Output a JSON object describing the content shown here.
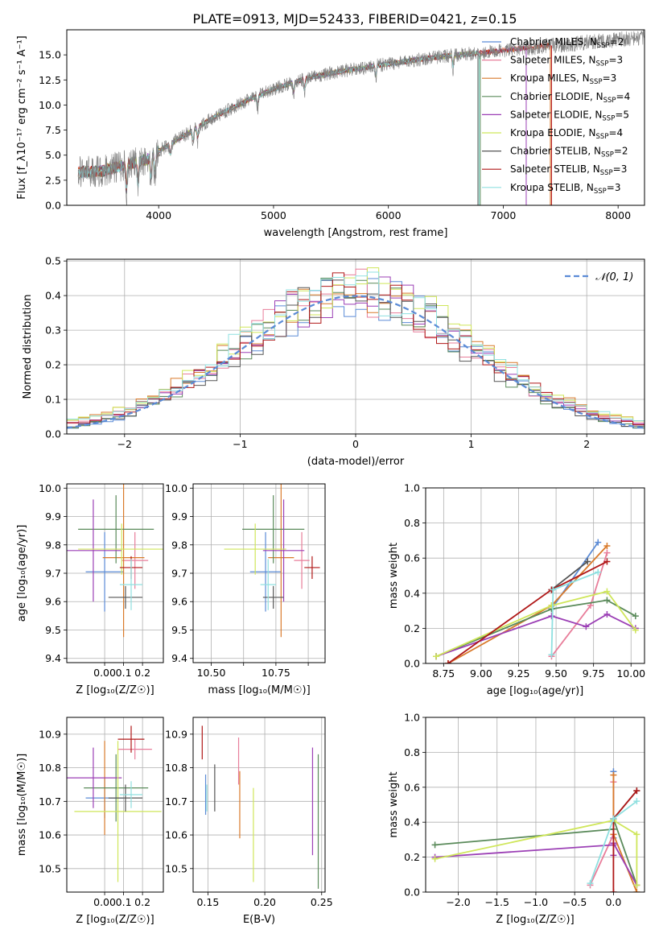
{
  "figure_title": "PLATE=0913, MJD=52433, FIBERID=0421, z=0.15",
  "colors": {
    "chabrier_miles": "#5b8bd6",
    "salpeter_miles": "#e87d9a",
    "kroupa_miles": "#d97a2b",
    "chabrier_elodie": "#5a8a5a",
    "salpeter_elodie": "#9b3fb5",
    "kroupa_elodie": "#cfe65a",
    "chabrier_stelib": "#555555",
    "salpeter_stelib": "#b01818",
    "kroupa_stelib": "#8fe0e0",
    "data": "#808080"
  },
  "chart_data": [
    {
      "id": "spectrum",
      "type": "line",
      "xlabel": "wavelength [Angstrom, rest frame]",
      "ylabel": "Flux [f_λ10⁻¹⁷ erg cm⁻² s⁻¹ A⁻¹]",
      "xlim": [
        3200,
        8230
      ],
      "ylim": [
        0,
        17.5
      ],
      "xticks": [
        4000,
        5000,
        6000,
        7000,
        8000
      ],
      "yticks": [
        0.0,
        2.5,
        5.0,
        7.5,
        10.0,
        12.5,
        15.0
      ],
      "ytick_labels": [
        "0.0",
        "2.5",
        "5.0",
        "7.5",
        "10.0",
        "12.5",
        "15.0"
      ],
      "legend": "top-right",
      "legend_entries": [
        {
          "label": "Chabrier MILES, N",
          "sub": "SSP",
          "tail": "=2",
          "color": "#5b8bd6"
        },
        {
          "label": "Salpeter MILES, N",
          "sub": "SSP",
          "tail": "=3",
          "color": "#e87d9a"
        },
        {
          "label": "Kroupa MILES, N",
          "sub": "SSP",
          "tail": "=3",
          "color": "#d97a2b"
        },
        {
          "label": "Chabrier ELODIE, N",
          "sub": "SSP",
          "tail": "=4",
          "color": "#5a8a5a"
        },
        {
          "label": "Salpeter ELODIE, N",
          "sub": "SSP",
          "tail": "=5",
          "color": "#9b3fb5"
        },
        {
          "label": "Kroupa ELODIE, N",
          "sub": "SSP",
          "tail": "=4",
          "color": "#cfe65a"
        },
        {
          "label": "Chabrier STELIB, N",
          "sub": "SSP",
          "tail": "=2",
          "color": "#555555"
        },
        {
          "label": "Salpeter STELIB, N",
          "sub": "SSP",
          "tail": "=3",
          "color": "#b01818"
        },
        {
          "label": "Kroupa STELIB, N",
          "sub": "SSP",
          "tail": "=3",
          "color": "#8fe0e0"
        }
      ],
      "continuum": {
        "x": [
          3300,
          3500,
          3700,
          3900,
          4000,
          4200,
          4500,
          4800,
          5000,
          5300,
          5600,
          6000,
          6300,
          6600,
          6900,
          7200,
          7500,
          7800,
          8000,
          8230
        ],
        "y": [
          3.3,
          3.4,
          4.0,
          4.6,
          5.4,
          6.8,
          8.9,
          10.6,
          11.6,
          12.7,
          13.4,
          14.1,
          14.6,
          15.0,
          15.3,
          15.7,
          16.0,
          16.3,
          16.5,
          16.7
        ]
      },
      "model_x_ranges": [
        [
          3300,
          6780
        ],
        [
          3300,
          7420
        ],
        [
          3300,
          7410
        ],
        [
          3300,
          6800
        ],
        [
          3300,
          7200
        ],
        [
          3300,
          6790
        ],
        [
          3300,
          6780
        ],
        [
          3300,
          7420
        ],
        [
          3300,
          6790
        ]
      ]
    },
    {
      "id": "residual_hist",
      "type": "bar",
      "xlabel": "(data-model)/error",
      "ylabel": "Normed distribution",
      "xlim": [
        -2.5,
        2.5
      ],
      "ylim": [
        0,
        0.505
      ],
      "xticks": [
        -2,
        -1,
        0,
        1,
        2
      ],
      "xtick_labels": [
        "−2",
        "−1",
        "0",
        "1",
        "2"
      ],
      "yticks": [
        0.0,
        0.1,
        0.2,
        0.3,
        0.4,
        0.5
      ],
      "ytick_labels": [
        "0.0",
        "0.1",
        "0.2",
        "0.3",
        "0.4",
        "0.5"
      ],
      "legend": "top-right",
      "gaussian_label": "𝒩(0, 1)",
      "bin_width": 0.1,
      "bin_start": -2.5
    },
    {
      "id": "age_vs_Z",
      "type": "scatter",
      "xlabel": "Z [log₁₀(Z/Z☉)]",
      "ylabel": "age  [log₁₀(age/yr)]",
      "xlim": [
        -0.2,
        0.31
      ],
      "ylim": [
        9.385,
        10.015
      ],
      "xticks": [
        0.0,
        0.1,
        0.2
      ],
      "xtick_labels": [
        "0.00",
        "0.1",
        "0.2"
      ],
      "yticks": [
        9.4,
        9.5,
        9.6,
        9.7,
        9.8,
        9.9,
        10.0
      ],
      "ytick_labels": [
        "9.4",
        "9.5",
        "9.6",
        "9.7",
        "9.8",
        "9.9",
        "10.0"
      ],
      "points": [
        {
          "model": "chabrier_miles",
          "x": 0.0,
          "y": 9.705,
          "xerr": 0.1,
          "yerr": 0.14
        },
        {
          "model": "salpeter_miles",
          "x": 0.16,
          "y": 9.745,
          "xerr": 0.07,
          "yerr": 0.1
        },
        {
          "model": "kroupa_miles",
          "x": 0.1,
          "y": 9.755,
          "xerr": 0.11,
          "yerr": 0.28
        },
        {
          "model": "chabrier_elodie",
          "x": 0.06,
          "y": 9.855,
          "xerr": 0.2,
          "yerr": 0.12
        },
        {
          "model": "salpeter_elodie",
          "x": -0.06,
          "y": 9.78,
          "xerr": 0.15,
          "yerr": 0.18
        },
        {
          "model": "kroupa_elodie",
          "x": 0.09,
          "y": 9.785,
          "xerr": 0.23,
          "yerr": 0.09
        },
        {
          "model": "chabrier_stelib",
          "x": 0.11,
          "y": 9.615,
          "xerr": 0.09,
          "yerr": 0.04
        },
        {
          "model": "salpeter_stelib",
          "x": 0.14,
          "y": 9.72,
          "xerr": 0.06,
          "yerr": 0.04
        },
        {
          "model": "kroupa_stelib",
          "x": 0.14,
          "y": 9.66,
          "xerr": 0.06,
          "yerr": 0.09
        }
      ]
    },
    {
      "id": "age_vs_mass",
      "type": "scatter",
      "xlabel": "mass [log₁₀(M/M☉)]",
      "ylabel": "",
      "xlim": [
        10.43,
        10.94
      ],
      "ylim": [
        9.385,
        10.015
      ],
      "xticks": [
        10.5,
        10.625,
        10.75,
        10.875
      ],
      "xtick_labels": [
        "10.50",
        "",
        "10.75",
        ""
      ],
      "yticks": [
        9.4,
        9.5,
        9.6,
        9.7,
        9.8,
        9.9,
        10.0
      ],
      "ytick_labels": [
        "9.4",
        "9.5",
        "9.6",
        "9.7",
        "9.8",
        "9.9",
        "10.0"
      ],
      "points": [
        {
          "model": "chabrier_miles",
          "x": 10.71,
          "y": 9.705,
          "xerr": 0.06,
          "yerr": 0.14
        },
        {
          "model": "salpeter_miles",
          "x": 10.85,
          "y": 9.745,
          "xerr": 0.03,
          "yerr": 0.1
        },
        {
          "model": "kroupa_miles",
          "x": 10.77,
          "y": 9.755,
          "xerr": 0.05,
          "yerr": 0.28
        },
        {
          "model": "chabrier_elodie",
          "x": 10.74,
          "y": 9.855,
          "xerr": 0.12,
          "yerr": 0.12
        },
        {
          "model": "salpeter_elodie",
          "x": 10.78,
          "y": 9.78,
          "xerr": 0.08,
          "yerr": 0.18
        },
        {
          "model": "kroupa_elodie",
          "x": 10.67,
          "y": 9.785,
          "xerr": 0.12,
          "yerr": 0.09
        },
        {
          "model": "chabrier_stelib",
          "x": 10.74,
          "y": 9.615,
          "xerr": 0.04,
          "yerr": 0.04
        },
        {
          "model": "salpeter_stelib",
          "x": 10.89,
          "y": 9.72,
          "xerr": 0.03,
          "yerr": 0.04
        },
        {
          "model": "kroupa_stelib",
          "x": 10.72,
          "y": 9.66,
          "xerr": 0.03,
          "yerr": 0.09
        }
      ]
    },
    {
      "id": "weight_vs_age",
      "type": "line",
      "xlabel": "age  [log₁₀(age/yr)]",
      "ylabel": "mass weight",
      "xlim": [
        8.63,
        10.09
      ],
      "ylim": [
        0,
        1.0
      ],
      "xticks": [
        8.75,
        9.0,
        9.25,
        9.5,
        9.75,
        10.0
      ],
      "xtick_labels": [
        "8.75",
        "9.00",
        "9.25",
        "9.50",
        "9.75",
        "10.00"
      ],
      "yticks": [
        0.0,
        0.2,
        0.4,
        0.6,
        0.8,
        1.0
      ],
      "ytick_labels": [
        "0.0",
        "0.2",
        "0.4",
        "0.6",
        "0.8",
        "1.0"
      ],
      "series": [
        {
          "model": "chabrier_miles",
          "x": [
            9.47,
            9.78
          ],
          "y": [
            0.31,
            0.69
          ]
        },
        {
          "model": "salpeter_miles",
          "x": [
            9.47,
            9.73,
            9.84
          ],
          "y": [
            0.04,
            0.33,
            0.63
          ]
        },
        {
          "model": "kroupa_miles",
          "x": [
            8.78,
            9.47,
            9.84
          ],
          "y": [
            0.0,
            0.33,
            0.67
          ]
        },
        {
          "model": "chabrier_elodie",
          "x": [
            8.7,
            9.47,
            9.84,
            10.03
          ],
          "y": [
            0.04,
            0.31,
            0.36,
            0.27
          ]
        },
        {
          "model": "salpeter_elodie",
          "x": [
            8.7,
            9.47,
            9.7,
            9.84,
            10.03
          ],
          "y": [
            0.04,
            0.27,
            0.21,
            0.28,
            0.2
          ]
        },
        {
          "model": "kroupa_elodie",
          "x": [
            8.7,
            9.47,
            9.84,
            10.03
          ],
          "y": [
            0.04,
            0.33,
            0.41,
            0.19
          ]
        },
        {
          "model": "chabrier_stelib",
          "x": [
            9.47,
            9.71
          ],
          "y": [
            0.42,
            0.58
          ]
        },
        {
          "model": "salpeter_stelib",
          "x": [
            8.78,
            9.47,
            9.84
          ],
          "y": [
            0.0,
            0.42,
            0.58
          ]
        },
        {
          "model": "kroupa_stelib",
          "x": [
            9.47,
            9.48,
            9.78
          ],
          "y": [
            0.05,
            0.42,
            0.52
          ]
        }
      ]
    },
    {
      "id": "mass_vs_Z",
      "type": "scatter",
      "xlabel": "Z [log₁₀(Z/Z☉)]",
      "ylabel": "mass [log₁₀(M/M☉)]",
      "xlim": [
        -0.2,
        0.31
      ],
      "ylim": [
        10.43,
        10.95
      ],
      "xticks": [
        0.0,
        0.1,
        0.2
      ],
      "xtick_labels": [
        "0.00",
        "0.1",
        "0.2"
      ],
      "yticks": [
        10.5,
        10.6,
        10.7,
        10.8,
        10.9
      ],
      "ytick_labels": [
        "10.5",
        "10.6",
        "10.7",
        "10.8",
        "10.9"
      ],
      "points": [
        {
          "model": "chabrier_miles",
          "x": 0.0,
          "y": 10.71,
          "xerr": 0.1,
          "yerr": 0.06
        },
        {
          "model": "salpeter_miles",
          "x": 0.16,
          "y": 10.855,
          "xerr": 0.09,
          "yerr": 0.03
        },
        {
          "model": "kroupa_miles",
          "x": 0.0,
          "y": 10.74,
          "xerr": 0.0,
          "yerr": 0.14
        },
        {
          "model": "chabrier_elodie",
          "x": 0.06,
          "y": 10.74,
          "xerr": 0.17,
          "yerr": 0.1
        },
        {
          "model": "salpeter_elodie",
          "x": -0.06,
          "y": 10.77,
          "xerr": 0.15,
          "yerr": 0.09
        },
        {
          "model": "kroupa_elodie",
          "x": 0.07,
          "y": 10.67,
          "xerr": 0.23,
          "yerr": 0.21
        },
        {
          "model": "chabrier_stelib",
          "x": 0.11,
          "y": 10.71,
          "xerr": 0.09,
          "yerr": 0.04
        },
        {
          "model": "salpeter_stelib",
          "x": 0.14,
          "y": 10.885,
          "xerr": 0.07,
          "yerr": 0.04
        },
        {
          "model": "kroupa_stelib",
          "x": 0.14,
          "y": 10.72,
          "xerr": 0.06,
          "yerr": 0.04
        }
      ]
    },
    {
      "id": "mass_vs_ebv",
      "type": "scatter",
      "xlabel": "E(B-V)",
      "ylabel": "",
      "xlim": [
        0.137,
        0.253
      ],
      "ylim": [
        10.43,
        10.95
      ],
      "xticks": [
        0.15,
        0.2,
        0.25
      ],
      "xtick_labels": [
        "0.15",
        "0.20",
        "0.25"
      ],
      "yticks": [
        10.5,
        10.6,
        10.7,
        10.8,
        10.9
      ],
      "ytick_labels": [
        "10.5",
        "10.6",
        "10.7",
        "10.8",
        "10.9"
      ],
      "points": [
        {
          "model": "chabrier_miles",
          "x": 0.148,
          "y": 10.72,
          "xerr": 0.0,
          "yerr": 0.06
        },
        {
          "model": "salpeter_miles",
          "x": 0.177,
          "y": 10.82,
          "xerr": 0.0,
          "yerr": 0.07
        },
        {
          "model": "kroupa_miles",
          "x": 0.178,
          "y": 10.69,
          "xerr": 0.0,
          "yerr": 0.1
        },
        {
          "model": "chabrier_elodie",
          "x": 0.247,
          "y": 10.64,
          "xerr": 0.0,
          "yerr": 0.2
        },
        {
          "model": "salpeter_elodie",
          "x": 0.242,
          "y": 10.7,
          "xerr": 0.0,
          "yerr": 0.16
        },
        {
          "model": "kroupa_elodie",
          "x": 0.19,
          "y": 10.6,
          "xerr": 0.0,
          "yerr": 0.14
        },
        {
          "model": "chabrier_stelib",
          "x": 0.156,
          "y": 10.74,
          "xerr": 0.0,
          "yerr": 0.07
        },
        {
          "model": "salpeter_stelib",
          "x": 0.145,
          "y": 10.875,
          "xerr": 0.0,
          "yerr": 0.05
        },
        {
          "model": "kroupa_stelib",
          "x": 0.149,
          "y": 10.71,
          "xerr": 0.0,
          "yerr": 0.04
        }
      ]
    },
    {
      "id": "weight_vs_Z",
      "type": "line",
      "xlabel": "Z [log₁₀(Z/Z☉)]",
      "ylabel": "mass weight",
      "xlim": [
        -2.42,
        0.4
      ],
      "ylim": [
        0,
        1.0
      ],
      "xticks": [
        -2.0,
        -1.5,
        -1.0,
        -0.5,
        0.0
      ],
      "xtick_labels": [
        "−2.0",
        "−1.5",
        "−1.0",
        "−0.5",
        "0.0"
      ],
      "yticks": [
        0.0,
        0.2,
        0.4,
        0.6,
        0.8,
        1.0
      ],
      "ytick_labels": [
        "0.0",
        "0.2",
        "0.4",
        "0.6",
        "0.8",
        "1.0"
      ],
      "series": [
        {
          "model": "chabrier_miles",
          "x": [
            0.0,
            0.0
          ],
          "y": [
            0.31,
            0.69
          ]
        },
        {
          "model": "salpeter_miles",
          "x": [
            -0.3,
            0.0,
            0.0
          ],
          "y": [
            0.04,
            0.33,
            0.63
          ]
        },
        {
          "model": "kroupa_miles",
          "x": [
            0.0,
            0.0,
            0.3
          ],
          "y": [
            0.67,
            0.33,
            0.0
          ]
        },
        {
          "model": "chabrier_elodie",
          "x": [
            -2.3,
            0.0,
            0.0,
            0.3
          ],
          "y": [
            0.27,
            0.36,
            0.42,
            0.04
          ]
        },
        {
          "model": "salpeter_elodie",
          "x": [
            -2.3,
            0.0,
            0.0,
            0.0,
            0.3
          ],
          "y": [
            0.2,
            0.27,
            0.21,
            0.28,
            0.04
          ]
        },
        {
          "model": "kroupa_elodie",
          "x": [
            -2.3,
            0.0,
            0.3,
            0.3
          ],
          "y": [
            0.19,
            0.41,
            0.33,
            0.04
          ]
        },
        {
          "model": "chabrier_stelib",
          "x": [
            0.0,
            0.3
          ],
          "y": [
            0.42,
            0.58
          ]
        },
        {
          "model": "salpeter_stelib",
          "x": [
            0.0,
            0.0,
            0.3
          ],
          "y": [
            0.0,
            0.42,
            0.58
          ]
        },
        {
          "model": "kroupa_stelib",
          "x": [
            -0.3,
            0.0,
            0.3
          ],
          "y": [
            0.05,
            0.42,
            0.52
          ]
        }
      ]
    }
  ]
}
